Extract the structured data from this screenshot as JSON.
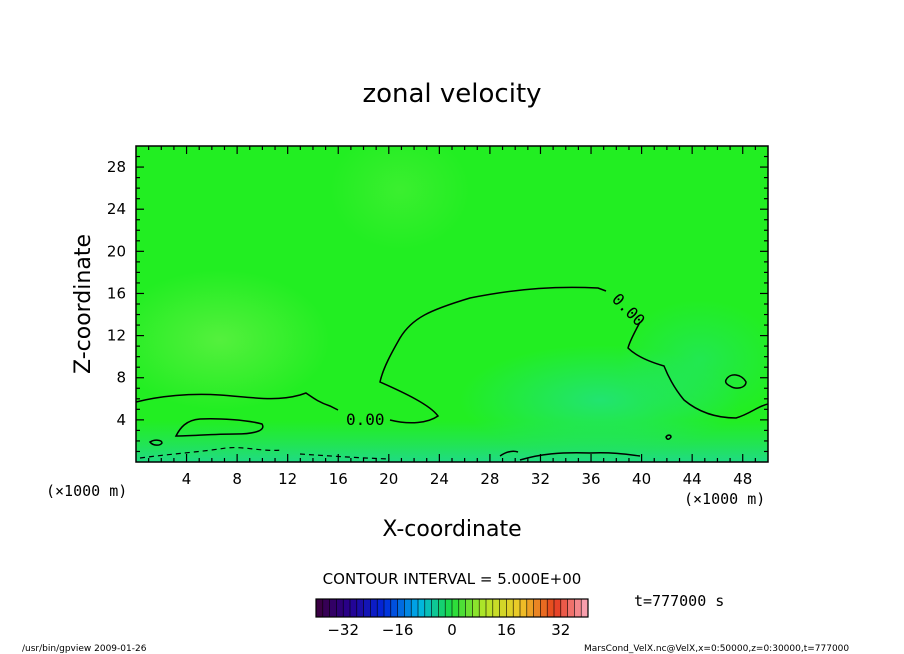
{
  "chart_data": {
    "type": "heatmap",
    "title": "zonal velocity",
    "xlabel": "X-coordinate",
    "ylabel": "Z-coordinate",
    "x_unit": "(×1000 m)",
    "y_unit": "(×1000 m)",
    "xlim": [
      0,
      50
    ],
    "ylim": [
      0,
      30
    ],
    "x_ticks": [
      4,
      8,
      12,
      16,
      20,
      24,
      28,
      32,
      36,
      40,
      44,
      48
    ],
    "y_ticks": [
      4,
      8,
      12,
      16,
      20,
      24,
      28
    ],
    "grid": false,
    "contour_interval": "CONTOUR INTERVAL = 5.000E+00",
    "contour_labels": [
      "0.00",
      "0.00"
    ],
    "colorbar": {
      "ticks": [
        -32,
        -16,
        0,
        16,
        32
      ],
      "range": [
        -40,
        40
      ],
      "colormap": "rainbow",
      "bands": 40
    },
    "time_label": "t=777000 s",
    "footer_left": "/usr/bin/gpview  2009-01-26",
    "footer_right": "MarsCond_VelX.nc@VelX,x=0:50000,z=0:30000,t=777000",
    "field_color": "#22ee22"
  }
}
